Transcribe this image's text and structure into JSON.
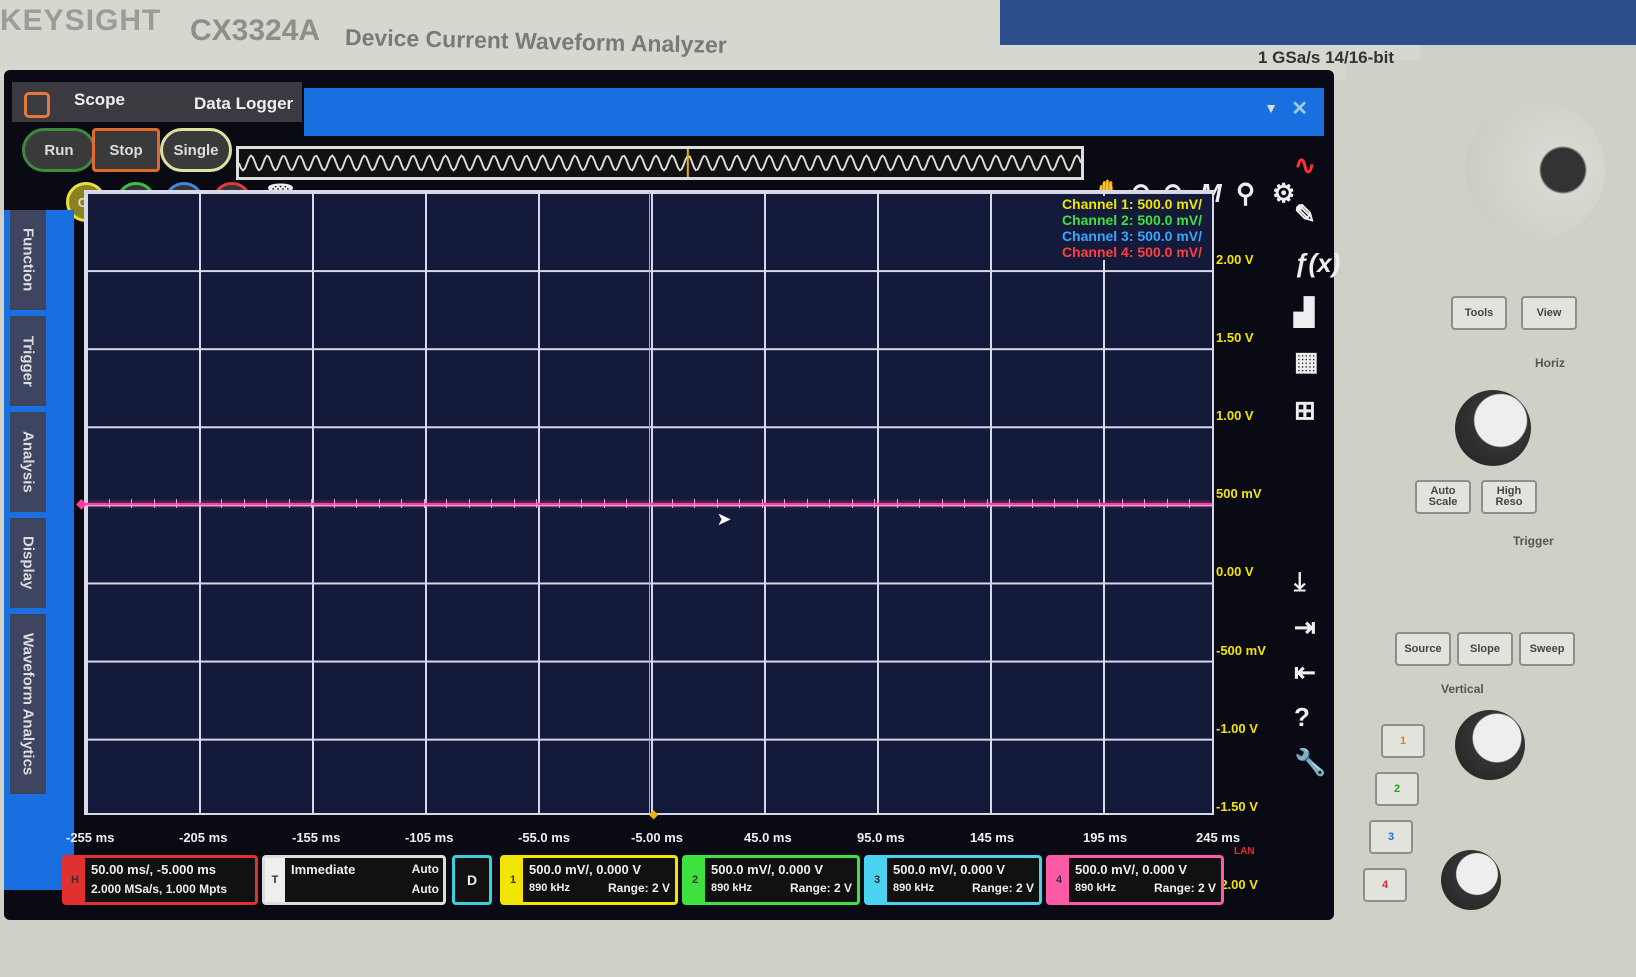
{
  "instrument": {
    "brand": "KEYSIGHT",
    "model": "CX3324A",
    "description": "Device Current Waveform Analyzer",
    "spec": "1 GSa/s  14/16-bit"
  },
  "tabs": [
    {
      "label": "Scope",
      "active": true
    },
    {
      "label": "Data Logger",
      "active": false
    }
  ],
  "controls": {
    "run": "Run",
    "stop": "Stop",
    "single": "Single"
  },
  "channel_buttons": [
    {
      "label": "C1",
      "color": "#e8e040"
    },
    {
      "label": "C2",
      "color": "#40c040"
    },
    {
      "label": "C3",
      "color": "#3a8ae0"
    },
    {
      "label": "C4",
      "color": "#e03a3a"
    }
  ],
  "side_tabs": [
    "Function",
    "Trigger",
    "Analysis",
    "Display",
    "Waveform Analytics"
  ],
  "legend": [
    {
      "label": "Channel 1: 500.0 mV/",
      "color": "#f2e600"
    },
    {
      "label": "Channel 2: 500.0 mV/",
      "color": "#3ee23e"
    },
    {
      "label": "Channel 3: 500.0 mV/",
      "color": "#3aa6ff"
    },
    {
      "label": "Channel 4: 500.0 mV/",
      "color": "#ff4040"
    }
  ],
  "y_ticks": [
    "2.00 V",
    "1.50 V",
    "1.00 V",
    "500 mV",
    "0.00 V",
    "-500 mV",
    "-1.00 V",
    "-1.50 V",
    "-2.00 V"
  ],
  "x_ticks": [
    "-255 ms",
    "-205 ms",
    "-155 ms",
    "-105 ms",
    "-55.0 ms",
    "-5.00 ms",
    "45.0 ms",
    "95.0 ms",
    "145 ms",
    "195 ms",
    "245 ms"
  ],
  "trace": {
    "channel": 4,
    "level_v": 0.0,
    "color": "#ff3fa0"
  },
  "status": {
    "horizontal": {
      "tag": "H",
      "line1": "50.00 ms/, -5.000 ms",
      "line2": "2.000 MSa/s, 1.000 Mpts"
    },
    "trigger": {
      "tag": "T",
      "mode": "Immediate",
      "sweep1": "Auto",
      "sweep2": "Auto"
    },
    "digital": "D",
    "channels": [
      {
        "tag": "1",
        "line1": "500.0 mV/, 0.000 V",
        "bw": "890 kHz",
        "range": "Range: 2 V",
        "color": "#f2e600"
      },
      {
        "tag": "2",
        "line1": "500.0 mV/, 0.000 V",
        "bw": "890 kHz",
        "range": "Range: 2 V",
        "color": "#3ee23e"
      },
      {
        "tag": "3",
        "line1": "500.0 mV/, 0.000 V",
        "bw": "890 kHz",
        "range": "Range: 2 V",
        "color": "#4ad2f0"
      },
      {
        "tag": "4",
        "line1": "500.0 mV/, 0.000 V",
        "bw": "890 kHz",
        "range": "Range: 2 V",
        "color": "#ff5aa8"
      }
    ],
    "lan": "LAN"
  },
  "panel": {
    "tools": "Tools",
    "view": "View",
    "horizontal": "Horiz",
    "auto_scale": "Auto Scale",
    "high_reso": "High Reso",
    "trigger": "Trigger",
    "source": "Source",
    "slope": "Slope",
    "sweep": "Sweep",
    "vertical": "Vertical",
    "vch": [
      "1",
      "2",
      "3",
      "4"
    ]
  }
}
